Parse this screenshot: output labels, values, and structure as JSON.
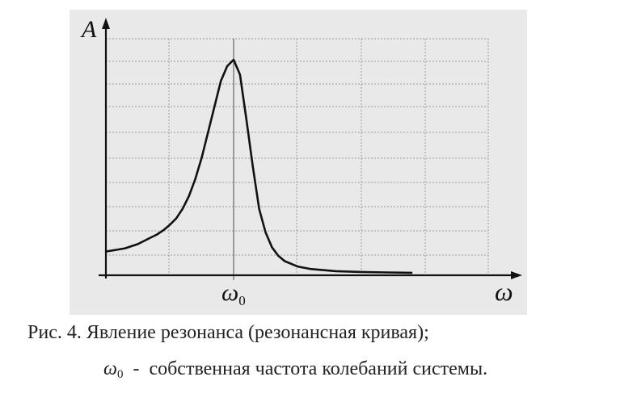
{
  "chart_data": {
    "type": "line",
    "ylabel": "A",
    "xlabel": "ω",
    "x_tick_labels": [
      {
        "symbol": "ω",
        "subscript": "0"
      }
    ],
    "grid": true,
    "series": [
      {
        "x": [
          0,
          0.05,
          0.1,
          0.15,
          0.2,
          0.25,
          0.3,
          0.35,
          0.4,
          0.45,
          0.5,
          0.55,
          0.6,
          0.65,
          0.7,
          0.75,
          0.8,
          0.85,
          0.9,
          0.95,
          1.0,
          1.05,
          1.1,
          1.15,
          1.2,
          1.25,
          1.3,
          1.35,
          1.4,
          1.5,
          1.6,
          1.8,
          2.0,
          2.2,
          2.4
        ],
        "y": [
          0.1,
          0.105,
          0.11,
          0.115,
          0.125,
          0.135,
          0.15,
          0.165,
          0.18,
          0.2,
          0.225,
          0.255,
          0.3,
          0.36,
          0.44,
          0.54,
          0.66,
          0.78,
          0.9,
          0.97,
          1.0,
          0.93,
          0.72,
          0.5,
          0.3,
          0.19,
          0.12,
          0.08,
          0.055,
          0.03,
          0.018,
          0.008,
          0.004,
          0.002,
          0.0
        ]
      }
    ],
    "caption_line1": "Рис. 4. Явление резонанса (резонансная кривая);",
    "caption_line2_symbol": "ω",
    "caption_line2_subscript": "0",
    "caption_line2_text": "  -  собственная частота колебаний системы."
  }
}
